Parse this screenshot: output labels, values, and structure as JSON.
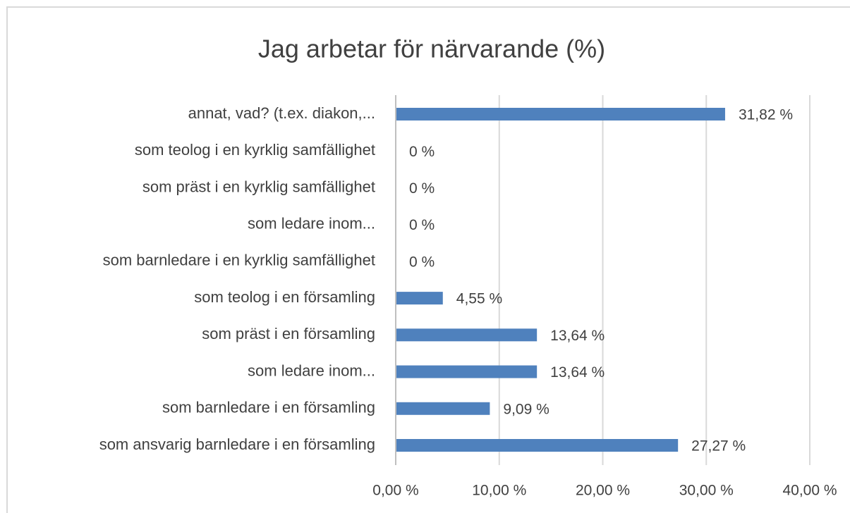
{
  "chart_data": {
    "type": "bar",
    "orientation": "horizontal",
    "title": "Jag arbetar för närvarande (%)",
    "categories": [
      "annat, vad? (t.ex. diakon,...",
      "som teolog i en kyrklig samfällighet",
      "som präst i en kyrklig samfällighet",
      "som ledare inom...",
      "som barnledare i en kyrklig samfällighet",
      "som teolog i en församling",
      "som präst i en församling",
      "som ledare inom...",
      "som barnledare i en församling",
      "som ansvarig barnledare i en församling"
    ],
    "values": [
      31.82,
      0,
      0,
      0,
      0,
      4.55,
      13.64,
      13.64,
      9.09,
      27.27
    ],
    "value_labels": [
      "31,82 %",
      "0 %",
      "0 %",
      "0 %",
      "0 %",
      "4,55 %",
      "13,64 %",
      "13,64 %",
      "9,09 %",
      "27,27 %"
    ],
    "color": "#4f81bd",
    "xlim": [
      0,
      40
    ],
    "xticks": [
      {
        "value": 0,
        "label": "0,00 %"
      },
      {
        "value": 10,
        "label": "10,00 %"
      },
      {
        "value": 20,
        "label": "20,00 %"
      },
      {
        "value": 30,
        "label": "30,00 %"
      },
      {
        "value": 40,
        "label": "40,00 %"
      }
    ],
    "grid": true
  }
}
